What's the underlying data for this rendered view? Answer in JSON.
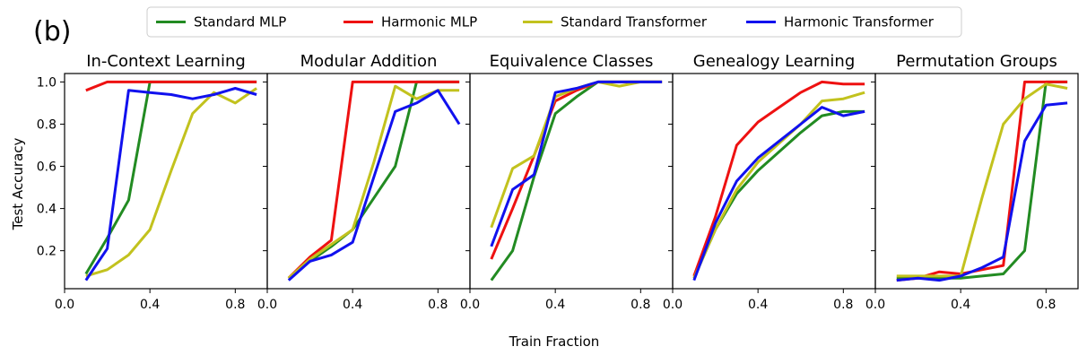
{
  "panel_label": "(b)",
  "shared_xlabel": "Train Fraction",
  "shared_ylabel": "Test Accuracy",
  "legend": {
    "placement": "top-center",
    "entries": [
      {
        "name": "Standard MLP",
        "color": "#228B22"
      },
      {
        "name": "Harmonic MLP",
        "color": "#EE1111"
      },
      {
        "name": "Standard Transformer",
        "color": "#C2C21E"
      },
      {
        "name": "Harmonic Transformer",
        "color": "#1111EE"
      }
    ]
  },
  "chart_data": [
    {
      "type": "line",
      "title": "In-Context Learning",
      "xlim": [
        0.0,
        0.95
      ],
      "ylim": [
        0.02,
        1.04
      ],
      "xticks": [
        0.0,
        0.4,
        0.8
      ],
      "yticks": [
        0.2,
        0.4,
        0.6,
        0.8,
        1.0
      ],
      "xtick_labels": [
        "0.0",
        "0.4",
        "0.8"
      ],
      "ytick_labels": [
        "0.2",
        "0.4",
        "0.6",
        "0.8",
        "1.0"
      ],
      "series": [
        {
          "name": "Standard MLP",
          "x": [
            0.1,
            0.2,
            0.3,
            0.4,
            0.5,
            0.6,
            0.7,
            0.8,
            0.9
          ],
          "y": [
            0.09,
            0.26,
            0.44,
            1.0,
            1.0,
            1.0,
            1.0,
            1.0,
            1.0
          ]
        },
        {
          "name": "Harmonic MLP",
          "x": [
            0.1,
            0.2,
            0.3,
            0.4,
            0.5,
            0.6,
            0.7,
            0.8,
            0.9
          ],
          "y": [
            0.96,
            1.0,
            1.0,
            1.0,
            1.0,
            1.0,
            1.0,
            1.0,
            1.0
          ]
        },
        {
          "name": "Standard Transformer",
          "x": [
            0.1,
            0.2,
            0.3,
            0.4,
            0.5,
            0.6,
            0.7,
            0.8,
            0.9
          ],
          "y": [
            0.08,
            0.11,
            0.18,
            0.3,
            0.58,
            0.85,
            0.95,
            0.9,
            0.97
          ]
        },
        {
          "name": "Harmonic Transformer",
          "x": [
            0.1,
            0.2,
            0.3,
            0.4,
            0.5,
            0.6,
            0.7,
            0.8,
            0.9
          ],
          "y": [
            0.06,
            0.21,
            0.96,
            0.95,
            0.94,
            0.92,
            0.94,
            0.97,
            0.94
          ]
        }
      ]
    },
    {
      "type": "line",
      "title": "Modular Addition",
      "xlim": [
        0.0,
        0.95
      ],
      "ylim": [
        0.02,
        1.04
      ],
      "xticks": [
        0.0,
        0.4,
        0.8
      ],
      "yticks": [
        0.2,
        0.4,
        0.6,
        0.8,
        1.0
      ],
      "xtick_labels": [
        "0.0",
        "0.4",
        "0.8"
      ],
      "ytick_labels": [],
      "series": [
        {
          "name": "Standard MLP",
          "x": [
            0.1,
            0.2,
            0.3,
            0.4,
            0.5,
            0.6,
            0.7,
            0.8,
            0.9
          ],
          "y": [
            0.07,
            0.15,
            0.22,
            0.3,
            0.45,
            0.6,
            1.0,
            1.0,
            1.0
          ]
        },
        {
          "name": "Harmonic MLP",
          "x": [
            0.1,
            0.2,
            0.3,
            0.4,
            0.5,
            0.6,
            0.7,
            0.8,
            0.9
          ],
          "y": [
            0.07,
            0.17,
            0.25,
            1.0,
            1.0,
            1.0,
            1.0,
            1.0,
            1.0
          ]
        },
        {
          "name": "Standard Transformer",
          "x": [
            0.1,
            0.2,
            0.3,
            0.4,
            0.5,
            0.6,
            0.7,
            0.8,
            0.9
          ],
          "y": [
            0.07,
            0.16,
            0.23,
            0.3,
            0.62,
            0.98,
            0.92,
            0.96,
            0.96
          ]
        },
        {
          "name": "Harmonic Transformer",
          "x": [
            0.1,
            0.2,
            0.3,
            0.4,
            0.5,
            0.6,
            0.7,
            0.8,
            0.9
          ],
          "y": [
            0.06,
            0.15,
            0.18,
            0.24,
            0.55,
            0.86,
            0.9,
            0.96,
            0.8
          ]
        }
      ]
    },
    {
      "type": "line",
      "title": "Equivalence Classes",
      "xlim": [
        0.0,
        0.95
      ],
      "ylim": [
        0.02,
        1.04
      ],
      "xticks": [
        0.0,
        0.4,
        0.8
      ],
      "yticks": [
        0.2,
        0.4,
        0.6,
        0.8,
        1.0
      ],
      "xtick_labels": [
        "0.0",
        "0.4",
        "0.8"
      ],
      "ytick_labels": [],
      "series": [
        {
          "name": "Standard MLP",
          "x": [
            0.1,
            0.2,
            0.3,
            0.4,
            0.5,
            0.6,
            0.7,
            0.8,
            0.9
          ],
          "y": [
            0.06,
            0.2,
            0.55,
            0.85,
            0.93,
            1.0,
            1.0,
            1.0,
            1.0
          ]
        },
        {
          "name": "Harmonic MLP",
          "x": [
            0.1,
            0.2,
            0.3,
            0.4,
            0.5,
            0.6,
            0.7,
            0.8,
            0.9
          ],
          "y": [
            0.16,
            0.4,
            0.65,
            0.91,
            0.96,
            1.0,
            1.0,
            1.0,
            1.0
          ]
        },
        {
          "name": "Standard Transformer",
          "x": [
            0.1,
            0.2,
            0.3,
            0.4,
            0.5,
            0.6,
            0.7,
            0.8,
            0.9
          ],
          "y": [
            0.31,
            0.59,
            0.65,
            0.93,
            0.97,
            1.0,
            0.98,
            1.0,
            1.0
          ]
        },
        {
          "name": "Harmonic Transformer",
          "x": [
            0.1,
            0.2,
            0.3,
            0.4,
            0.5,
            0.6,
            0.7,
            0.8,
            0.9
          ],
          "y": [
            0.22,
            0.49,
            0.56,
            0.95,
            0.97,
            1.0,
            1.0,
            1.0,
            1.0
          ]
        }
      ]
    },
    {
      "type": "line",
      "title": "Genealogy Learning",
      "xlim": [
        0.0,
        0.95
      ],
      "ylim": [
        0.02,
        1.04
      ],
      "xticks": [
        0.0,
        0.4,
        0.8
      ],
      "yticks": [
        0.2,
        0.4,
        0.6,
        0.8,
        1.0
      ],
      "xtick_labels": [
        "0.0",
        "0.4",
        "0.8"
      ],
      "ytick_labels": [],
      "series": [
        {
          "name": "Standard MLP",
          "x": [
            0.1,
            0.2,
            0.3,
            0.4,
            0.5,
            0.6,
            0.7,
            0.8,
            0.9
          ],
          "y": [
            0.07,
            0.3,
            0.47,
            0.58,
            0.67,
            0.76,
            0.84,
            0.86,
            0.86
          ]
        },
        {
          "name": "Harmonic MLP",
          "x": [
            0.1,
            0.2,
            0.3,
            0.4,
            0.5,
            0.6,
            0.7,
            0.8,
            0.9
          ],
          "y": [
            0.08,
            0.36,
            0.7,
            0.81,
            0.88,
            0.95,
            1.0,
            0.99,
            0.99
          ]
        },
        {
          "name": "Standard Transformer",
          "x": [
            0.1,
            0.2,
            0.3,
            0.4,
            0.5,
            0.6,
            0.7,
            0.8,
            0.9
          ],
          "y": [
            0.07,
            0.3,
            0.49,
            0.62,
            0.71,
            0.8,
            0.91,
            0.92,
            0.95
          ]
        },
        {
          "name": "Harmonic Transformer",
          "x": [
            0.1,
            0.2,
            0.3,
            0.4,
            0.5,
            0.6,
            0.7,
            0.8,
            0.9
          ],
          "y": [
            0.06,
            0.33,
            0.53,
            0.64,
            0.72,
            0.8,
            0.88,
            0.84,
            0.86
          ]
        }
      ]
    },
    {
      "type": "line",
      "title": "Permutation Groups",
      "xlim": [
        0.0,
        0.95
      ],
      "ylim": [
        0.02,
        1.04
      ],
      "xticks": [
        0.0,
        0.4,
        0.8
      ],
      "yticks": [
        0.2,
        0.4,
        0.6,
        0.8,
        1.0
      ],
      "xtick_labels": [
        "0.0",
        "0.4",
        "0.8"
      ],
      "ytick_labels": [],
      "series": [
        {
          "name": "Standard MLP",
          "x": [
            0.1,
            0.2,
            0.3,
            0.4,
            0.5,
            0.6,
            0.7,
            0.8,
            0.9
          ],
          "y": [
            0.07,
            0.07,
            0.07,
            0.07,
            0.08,
            0.09,
            0.2,
            1.0,
            1.0
          ]
        },
        {
          "name": "Harmonic MLP",
          "x": [
            0.1,
            0.2,
            0.3,
            0.4,
            0.5,
            0.6,
            0.7,
            0.8,
            0.9
          ],
          "y": [
            0.06,
            0.07,
            0.1,
            0.09,
            0.11,
            0.13,
            1.0,
            1.0,
            1.0
          ]
        },
        {
          "name": "Standard Transformer",
          "x": [
            0.1,
            0.2,
            0.3,
            0.4,
            0.5,
            0.6,
            0.7,
            0.8,
            0.9
          ],
          "y": [
            0.08,
            0.08,
            0.08,
            0.08,
            0.45,
            0.8,
            0.92,
            0.99,
            0.97
          ]
        },
        {
          "name": "Harmonic Transformer",
          "x": [
            0.1,
            0.2,
            0.3,
            0.4,
            0.5,
            0.6,
            0.7,
            0.8,
            0.9
          ],
          "y": [
            0.06,
            0.07,
            0.06,
            0.08,
            0.12,
            0.17,
            0.72,
            0.89,
            0.9
          ]
        }
      ]
    }
  ]
}
